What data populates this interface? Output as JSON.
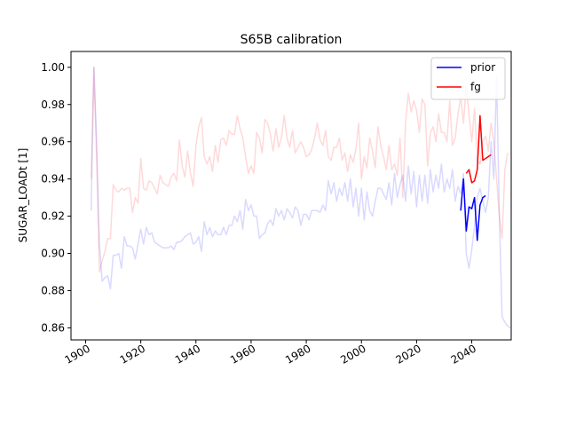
{
  "chart_data": {
    "type": "line",
    "title": "S65B calibration",
    "xlabel": "",
    "ylabel": "SUGAR_LOADt [1]",
    "xlim": [
      1894.7,
      2054.3
    ],
    "ylim": [
      0.8535,
      1.0085
    ],
    "xticks": [
      "1900",
      "1920",
      "1940",
      "1960",
      "1980",
      "2000",
      "2020",
      "2040"
    ],
    "yticks": [
      "0.86",
      "0.88",
      "0.90",
      "0.92",
      "0.94",
      "0.96",
      "0.98",
      "1.00"
    ],
    "legend_position": "top-right",
    "grid": false,
    "series": [
      {
        "name": "",
        "color": "#0000ff",
        "opacity": 0.15,
        "start_year": 1902,
        "values": [
          0.923,
          1.0,
          0.96,
          0.905,
          0.885,
          0.887,
          0.888,
          0.881,
          0.899,
          0.899,
          0.9,
          0.892,
          0.909,
          0.904,
          0.904,
          0.903,
          0.897,
          0.905,
          0.913,
          0.905,
          0.914,
          0.91,
          0.911,
          0.906,
          0.905,
          0.904,
          0.903,
          0.903,
          0.903,
          0.904,
          0.902,
          0.906,
          0.906,
          0.907,
          0.909,
          0.91,
          0.911,
          0.905,
          0.906,
          0.909,
          0.901,
          0.917,
          0.91,
          0.914,
          0.909,
          0.912,
          0.91,
          0.91,
          0.914,
          0.91,
          0.915,
          0.915,
          0.92,
          0.917,
          0.923,
          0.913,
          0.929,
          0.923,
          0.926,
          0.92,
          0.92,
          0.908,
          0.91,
          0.911,
          0.916,
          0.918,
          0.915,
          0.924,
          0.92,
          0.923,
          0.918,
          0.924,
          0.922,
          0.919,
          0.925,
          0.923,
          0.915,
          0.921,
          0.921,
          0.918,
          0.923,
          0.923,
          0.923,
          0.922,
          0.926,
          0.923,
          0.939,
          0.932,
          0.938,
          0.928,
          0.935,
          0.931,
          0.938,
          0.928,
          0.94,
          0.925,
          0.935,
          0.92,
          0.935,
          0.918,
          0.933,
          0.923,
          0.92,
          0.928,
          0.935,
          0.935,
          0.932,
          0.929,
          0.938,
          0.926,
          0.943,
          0.93,
          0.937,
          0.942,
          0.928,
          0.947,
          0.932,
          0.944,
          0.925,
          0.942,
          0.928,
          0.942,
          0.927,
          0.945,
          0.933,
          0.942,
          0.935,
          0.948,
          0.933,
          0.94,
          0.935,
          0.945,
          0.928,
          0.936,
          0.932,
          0.943,
          0.9,
          0.892,
          0.902,
          0.915,
          0.93,
          0.935,
          0.928,
          0.922,
          0.93,
          0.96,
          0.94,
          0.995,
          0.92,
          0.866,
          0.863,
          0.861,
          0.86
        ]
      },
      {
        "name": "",
        "color": "#ff0000",
        "opacity": 0.15,
        "start_year": 1902,
        "values": [
          0.94,
          1.0,
          0.95,
          0.89,
          0.896,
          0.901,
          0.908,
          0.908,
          0.937,
          0.934,
          0.933,
          0.935,
          0.934,
          0.935,
          0.935,
          0.922,
          0.93,
          0.927,
          0.951,
          0.935,
          0.934,
          0.939,
          0.938,
          0.935,
          0.932,
          0.942,
          0.938,
          0.937,
          0.936,
          0.941,
          0.943,
          0.939,
          0.961,
          0.947,
          0.941,
          0.955,
          0.943,
          0.936,
          0.958,
          0.968,
          0.973,
          0.952,
          0.948,
          0.952,
          0.944,
          0.958,
          0.949,
          0.961,
          0.962,
          0.958,
          0.966,
          0.964,
          0.964,
          0.974,
          0.967,
          0.962,
          0.952,
          0.943,
          0.947,
          0.943,
          0.965,
          0.962,
          0.954,
          0.972,
          0.97,
          0.964,
          0.955,
          0.967,
          0.957,
          0.962,
          0.974,
          0.962,
          0.957,
          0.966,
          0.954,
          0.957,
          0.96,
          0.957,
          0.952,
          0.953,
          0.956,
          0.962,
          0.97,
          0.961,
          0.958,
          0.966,
          0.952,
          0.95,
          0.957,
          0.957,
          0.962,
          0.95,
          0.954,
          0.944,
          0.953,
          0.949,
          0.956,
          0.97,
          0.94,
          0.952,
          0.946,
          0.962,
          0.955,
          0.946,
          0.968,
          0.958,
          0.952,
          0.945,
          0.958,
          0.945,
          0.948,
          0.942,
          0.962,
          0.93,
          0.97,
          0.986,
          0.976,
          0.982,
          0.977,
          0.965,
          0.983,
          0.98,
          0.947,
          0.965,
          0.968,
          0.96,
          0.975,
          0.965,
          0.965,
          0.96,
          0.982,
          0.958,
          0.962,
          0.975,
          0.984,
          0.97,
          0.99,
          0.975,
          0.96,
          0.978,
          0.95,
          0.948,
          0.96,
          0.963,
          0.955,
          0.97,
          0.96,
          0.94,
          0.92,
          0.908,
          0.945,
          0.954
        ]
      },
      {
        "name": "prior",
        "color": "#0000ff",
        "opacity": 1,
        "start_year": 2036,
        "values": [
          0.923,
          0.94,
          0.912,
          0.925,
          0.924,
          0.93,
          0.907,
          0.926,
          0.93,
          0.931
        ]
      },
      {
        "name": "fg",
        "color": "#ff0000",
        "opacity": 1,
        "start_year": 2036,
        "values": [
          null,
          null,
          0.943,
          0.945,
          0.938,
          0.939,
          0.945,
          0.974,
          0.95,
          0.951,
          0.952,
          0.953
        ]
      }
    ]
  }
}
